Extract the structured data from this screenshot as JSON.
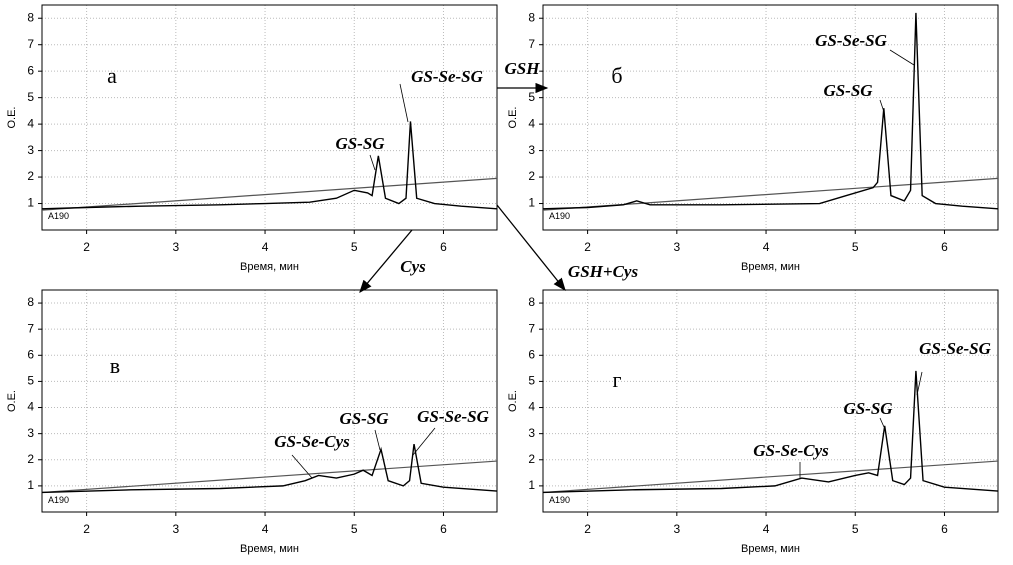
{
  "chart_data": [
    {
      "type": "line",
      "label": "а",
      "x_label": "Время, мин",
      "y_label": "О.Е.",
      "xlim": [
        1.5,
        6.6
      ],
      "ylim": [
        0,
        8.5
      ],
      "xticks": [
        2,
        3,
        4,
        5,
        6
      ],
      "yticks": [
        1,
        2,
        3,
        4,
        5,
        6,
        7,
        8
      ],
      "grid": true,
      "x": [
        1.5,
        2.0,
        2.6,
        3.5,
        4.0,
        4.5,
        4.8,
        5.0,
        5.15,
        5.2,
        5.27,
        5.35,
        5.5,
        5.58,
        5.63,
        5.7,
        5.9,
        6.2,
        6.6
      ],
      "series": [
        {
          "name": "A190",
          "color": "#000000",
          "values": [
            0.8,
            0.85,
            0.9,
            0.95,
            1.0,
            1.05,
            1.2,
            1.5,
            1.4,
            1.3,
            2.8,
            1.2,
            1.0,
            1.2,
            4.1,
            1.2,
            1.0,
            0.9,
            0.8
          ]
        }
      ],
      "gradient": {
        "x": [
          1.5,
          6.6
        ],
        "values": [
          0.75,
          1.95
        ],
        "color": "#555555"
      },
      "annotations": [
        {
          "text": "GS-SG"
        },
        {
          "text": "GS-Se-SG"
        }
      ]
    },
    {
      "type": "line",
      "label": "б",
      "x_label": "Время, мин",
      "y_label": "О.Е.",
      "xlim": [
        1.5,
        6.6
      ],
      "ylim": [
        0,
        8.5
      ],
      "xticks": [
        2,
        3,
        4,
        5,
        6
      ],
      "yticks": [
        1,
        2,
        3,
        4,
        5,
        6,
        7,
        8
      ],
      "grid": true,
      "x": [
        1.5,
        2.0,
        2.4,
        2.55,
        2.7,
        3.5,
        4.6,
        4.9,
        5.2,
        5.25,
        5.32,
        5.4,
        5.55,
        5.62,
        5.68,
        5.75,
        5.9,
        6.2,
        6.6
      ],
      "series": [
        {
          "name": "A190",
          "color": "#000000",
          "values": [
            0.8,
            0.85,
            0.95,
            1.1,
            0.95,
            0.95,
            1.0,
            1.3,
            1.6,
            1.8,
            4.6,
            1.3,
            1.1,
            1.5,
            8.2,
            1.3,
            1.0,
            0.9,
            0.8
          ]
        }
      ],
      "gradient": {
        "x": [
          1.5,
          6.6
        ],
        "values": [
          0.75,
          1.95
        ],
        "color": "#555555"
      },
      "annotations": [
        {
          "text": "GS-SG"
        },
        {
          "text": "GS-Se-SG"
        }
      ]
    },
    {
      "type": "line",
      "label": "в",
      "x_label": "Время, мин",
      "y_label": "О.Е.",
      "xlim": [
        1.5,
        6.6
      ],
      "ylim": [
        0,
        8.5
      ],
      "xticks": [
        2,
        3,
        4,
        5,
        6
      ],
      "yticks": [
        1,
        2,
        3,
        4,
        5,
        6,
        7,
        8
      ],
      "grid": true,
      "x": [
        1.5,
        2.5,
        3.5,
        4.2,
        4.45,
        4.6,
        4.8,
        5.0,
        5.1,
        5.2,
        5.3,
        5.38,
        5.55,
        5.62,
        5.67,
        5.75,
        6.0,
        6.6
      ],
      "series": [
        {
          "name": "A190",
          "color": "#000000",
          "values": [
            0.75,
            0.85,
            0.9,
            1.0,
            1.2,
            1.4,
            1.3,
            1.45,
            1.6,
            1.4,
            2.4,
            1.2,
            1.0,
            1.2,
            2.6,
            1.1,
            0.95,
            0.8
          ]
        }
      ],
      "gradient": {
        "x": [
          1.5,
          6.6
        ],
        "values": [
          0.75,
          1.95
        ],
        "color": "#555555"
      },
      "annotations": [
        {
          "text": "GS-Se-Cys"
        },
        {
          "text": "GS-SG"
        },
        {
          "text": "GS-Se-SG"
        }
      ]
    },
    {
      "type": "line",
      "label": "г",
      "x_label": "Время, мин",
      "y_label": "О.Е.",
      "xlim": [
        1.5,
        6.6
      ],
      "ylim": [
        0,
        8.5
      ],
      "xticks": [
        2,
        3,
        4,
        5,
        6
      ],
      "yticks": [
        1,
        2,
        3,
        4,
        5,
        6,
        7,
        8
      ],
      "grid": true,
      "x": [
        1.5,
        2.5,
        3.5,
        4.1,
        4.4,
        4.7,
        5.0,
        5.15,
        5.25,
        5.33,
        5.42,
        5.55,
        5.62,
        5.68,
        5.76,
        6.0,
        6.6
      ],
      "series": [
        {
          "name": "A190",
          "color": "#000000",
          "values": [
            0.75,
            0.85,
            0.9,
            1.0,
            1.3,
            1.15,
            1.4,
            1.5,
            1.4,
            3.3,
            1.2,
            1.05,
            1.3,
            5.4,
            1.2,
            0.95,
            0.8
          ]
        }
      ],
      "gradient": {
        "x": [
          1.5,
          6.6
        ],
        "values": [
          0.75,
          1.95
        ],
        "color": "#555555"
      },
      "annotations": [
        {
          "text": "GS-Se-Cys"
        },
        {
          "text": "GS-SG"
        },
        {
          "text": "GS-Se-SG"
        }
      ]
    }
  ],
  "arrows": [
    {
      "label": "GSH"
    },
    {
      "label": "Cys"
    },
    {
      "label": "GSH+Cys"
    }
  ]
}
